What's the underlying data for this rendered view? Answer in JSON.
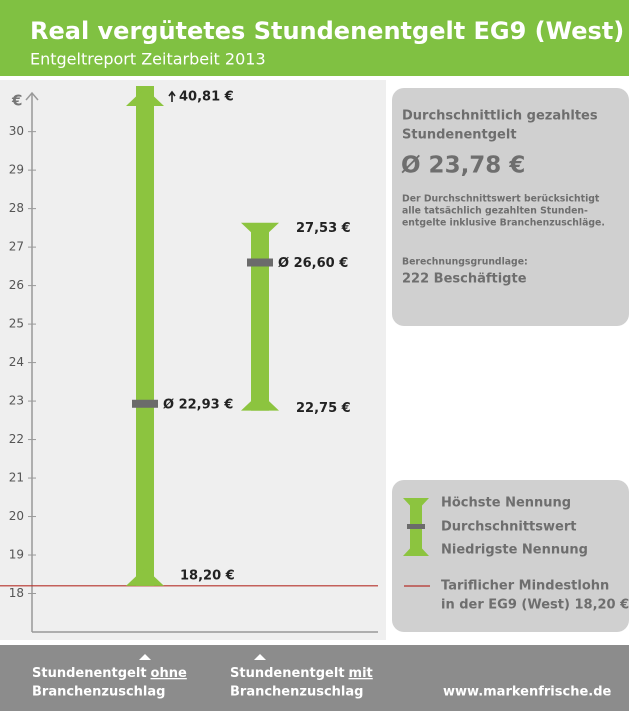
{
  "chart_data": {
    "type": "range",
    "title": "Real vergütetes Stundenentgelt EG9 (West)",
    "subtitle": "Entgeltreport Zeitarbeit 2013",
    "y_unit": "€",
    "categories": [
      {
        "before": "Stundenentgelt",
        "underlined": "ohne",
        "after": "Branchenzuschlag"
      },
      {
        "before": "Stundenentgelt",
        "underlined": "mit",
        "after": "Branchenzuschlag"
      }
    ],
    "series": [
      {
        "name": "Höchste Nennung",
        "color": "#8cc43f",
        "values": [
          40.81,
          27.53
        ],
        "value_labels": [
          "40,81 €",
          "27,53 €"
        ]
      },
      {
        "name": "Durchschnittswert",
        "color": "#6b6b6b",
        "values": [
          22.93,
          26.6
        ],
        "value_labels": [
          "Ø 22,93 €",
          "Ø 26,60 €"
        ]
      },
      {
        "name": "Niedrigste Nennung",
        "color": "#8cc43f",
        "values": [
          18.2,
          22.75
        ],
        "value_labels": [
          "18,20 €",
          "22,75 €"
        ]
      }
    ],
    "reference_line": {
      "value": 18.2,
      "color": "#b5302a",
      "label": [
        "Tariflicher Mindestlohn",
        "in der EG9 (West) 18,20 €"
      ]
    },
    "ylim": [
      17,
      30.9
    ],
    "yticks": [
      18,
      19,
      20,
      21,
      22,
      23,
      24,
      25,
      26,
      27,
      28,
      29,
      30
    ],
    "panel": {
      "heading": [
        "Durchschnittlich gezahltes",
        "Stundenentgelt"
      ],
      "average": "Ø 23,78 €",
      "note": [
        "Der Durchschnittswert berücksichtigt",
        "alle tatsächlich gezahlten Stunden-",
        "entgelte inklusive Branchenzuschläge."
      ],
      "basis_label": "Berechnungsgrundlage:",
      "basis_value": "222 Beschäftigte"
    },
    "source": "www.markenfrische.de"
  }
}
